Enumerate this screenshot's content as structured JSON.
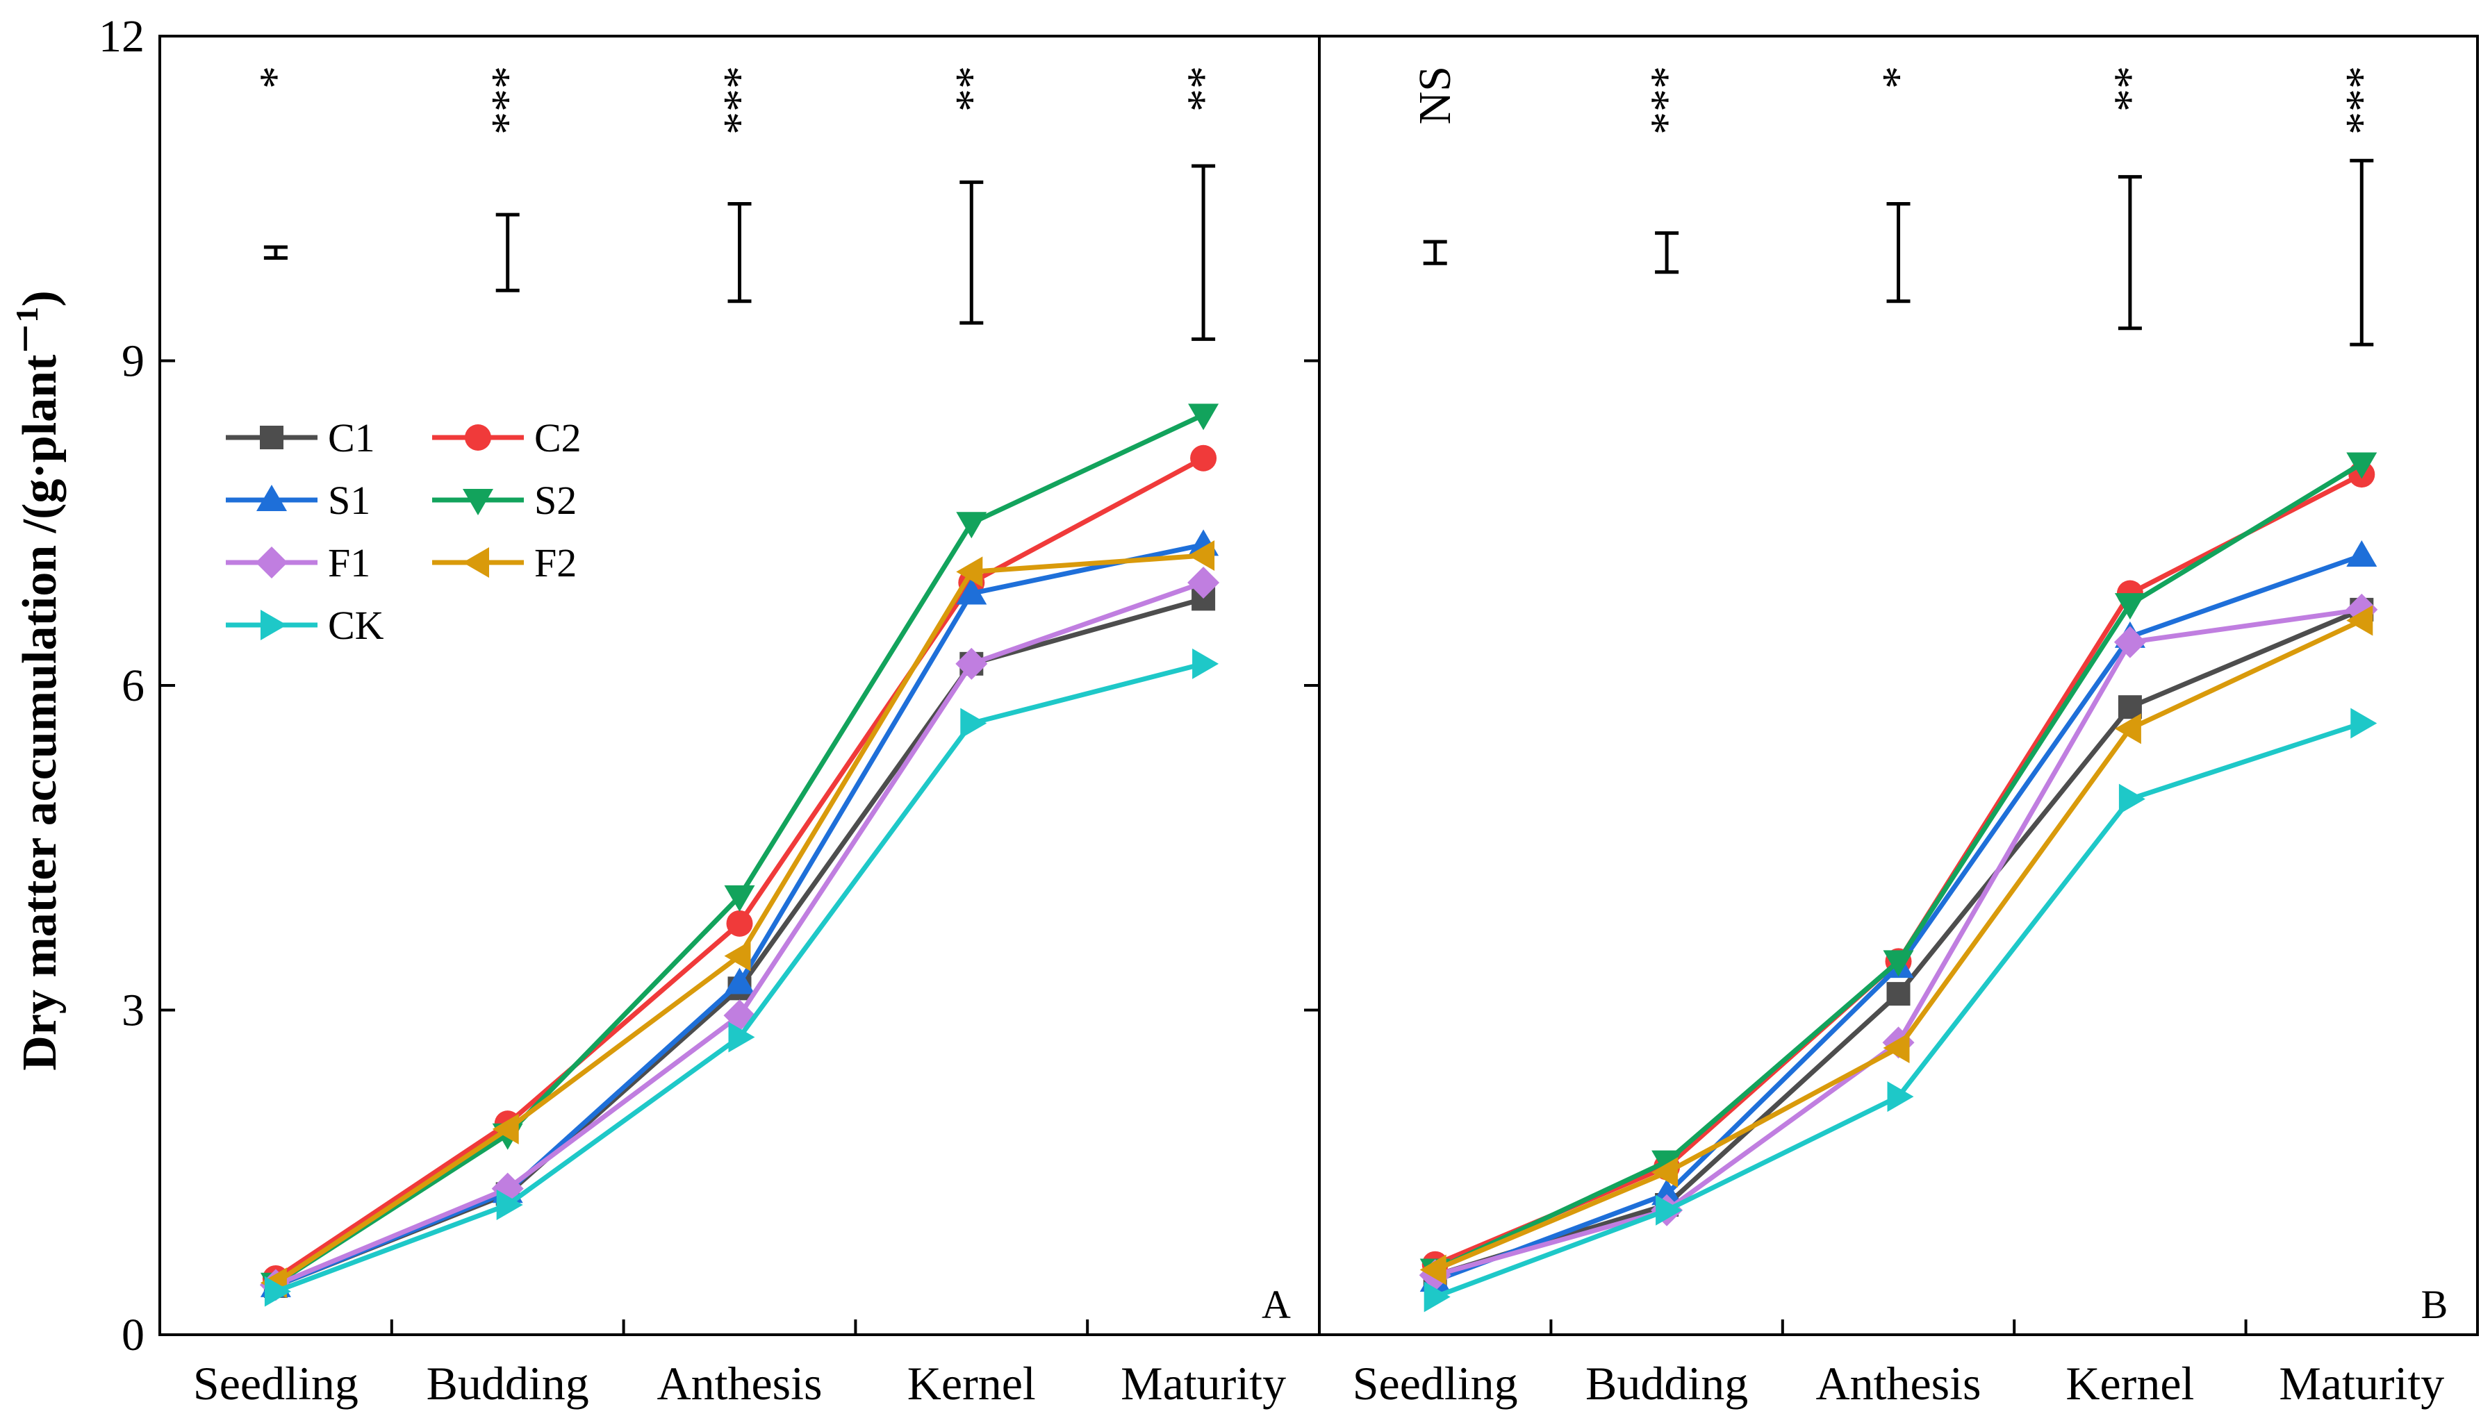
{
  "chart_data": {
    "type": "line",
    "ylabel": "Dry matter accumulation /(g·plant",
    "ylabel_sup": "－1",
    "ylabel_close": ")",
    "ylim": [
      0,
      12
    ],
    "yticks": [
      "0",
      "3",
      "6",
      "9",
      "12"
    ],
    "categories": [
      "Seedling",
      "Budding",
      "Anthesis",
      "Kernel",
      "Maturity"
    ],
    "legend": [
      "C1",
      "C2",
      "S1",
      "S2",
      "F1",
      "F2",
      "CK"
    ],
    "colors": {
      "C1": "#4d4d4d",
      "C2": "#f03a3a",
      "S1": "#1e6fd9",
      "S2": "#12a35c",
      "F1": "#c07ee0",
      "F2": "#d99a0b",
      "CK": "#1ec8c8"
    },
    "markers": {
      "C1": "square",
      "C2": "circle",
      "S1": "triangle-up",
      "S2": "triangle-down",
      "F1": "diamond",
      "F2": "triangle-left",
      "CK": "triangle-right"
    },
    "panels": [
      {
        "label": "A",
        "significance": [
          "*",
          "***",
          "***",
          "**",
          "**"
        ],
        "error_bars": [
          [
            9.95,
            10.05
          ],
          [
            9.65,
            10.35
          ],
          [
            9.55,
            10.45
          ],
          [
            9.35,
            10.65
          ],
          [
            9.2,
            10.8
          ]
        ],
        "series": [
          {
            "name": "C1",
            "values": [
              0.45,
              1.3,
              3.2,
              6.2,
              6.8
            ]
          },
          {
            "name": "C2",
            "values": [
              0.52,
              1.95,
              3.8,
              6.95,
              8.1
            ]
          },
          {
            "name": "S1",
            "values": [
              0.45,
              1.32,
              3.25,
              6.85,
              7.3
            ]
          },
          {
            "name": "S2",
            "values": [
              0.47,
              1.85,
              4.05,
              7.5,
              8.5
            ]
          },
          {
            "name": "F1",
            "values": [
              0.46,
              1.35,
              2.95,
              6.2,
              6.95
            ]
          },
          {
            "name": "F2",
            "values": [
              0.48,
              1.9,
              3.5,
              7.05,
              7.2
            ]
          },
          {
            "name": "CK",
            "values": [
              0.4,
              1.2,
              2.75,
              5.65,
              6.2
            ]
          }
        ]
      },
      {
        "label": "B",
        "significance": [
          "NS",
          "***",
          "*",
          "**",
          "***"
        ],
        "error_bars": [
          [
            9.9,
            10.1
          ],
          [
            9.82,
            10.18
          ],
          [
            9.55,
            10.45
          ],
          [
            9.3,
            10.7
          ],
          [
            9.15,
            10.85
          ]
        ],
        "series": [
          {
            "name": "C1",
            "values": [
              0.55,
              1.2,
              3.15,
              5.8,
              6.7
            ]
          },
          {
            "name": "C2",
            "values": [
              0.65,
              1.55,
              3.45,
              6.85,
              7.95
            ]
          },
          {
            "name": "S1",
            "values": [
              0.5,
              1.3,
              3.4,
              6.45,
              7.2
            ]
          },
          {
            "name": "S2",
            "values": [
              0.6,
              1.6,
              3.45,
              6.75,
              8.05
            ]
          },
          {
            "name": "F1",
            "values": [
              0.55,
              1.15,
              2.7,
              6.4,
              6.7
            ]
          },
          {
            "name": "F2",
            "values": [
              0.6,
              1.5,
              2.65,
              5.6,
              6.6
            ]
          },
          {
            "name": "CK",
            "values": [
              0.35,
              1.15,
              2.2,
              4.95,
              5.65
            ]
          }
        ]
      }
    ]
  }
}
